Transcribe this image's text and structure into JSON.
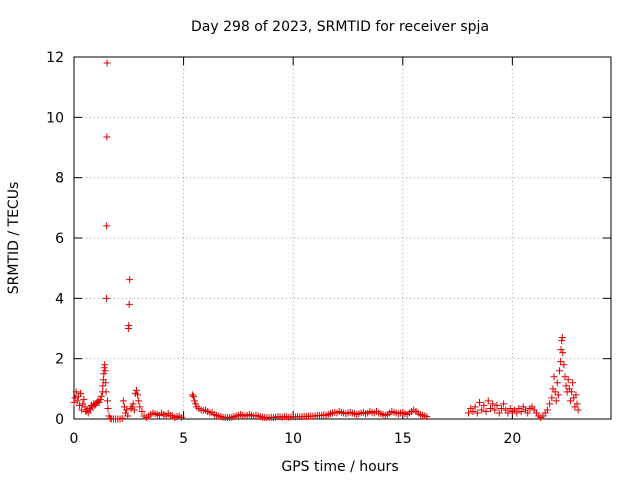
{
  "chart_data": {
    "type": "scatter",
    "title": "Day 298 of 2023, SRMTID for receiver spja",
    "xlabel": "GPS time / hours",
    "ylabel": "SRMTID / TECUs",
    "xlim": [
      0,
      24.5
    ],
    "ylim": [
      0,
      12
    ],
    "xticks": [
      0,
      5,
      10,
      15,
      20
    ],
    "yticks": [
      0,
      2,
      4,
      6,
      8,
      10,
      12
    ],
    "grid": true,
    "marker": "+",
    "series_color": "#e00000",
    "series": [
      {
        "name": "SRMTID",
        "points": [
          [
            0.0,
            0.55
          ],
          [
            0.05,
            0.7
          ],
          [
            0.1,
            0.9
          ],
          [
            0.15,
            0.6
          ],
          [
            0.2,
            0.75
          ],
          [
            0.25,
            0.45
          ],
          [
            0.3,
            0.85
          ],
          [
            0.35,
            0.3
          ],
          [
            0.4,
            0.5
          ],
          [
            0.45,
            0.65
          ],
          [
            0.5,
            0.4
          ],
          [
            0.55,
            0.25
          ],
          [
            0.6,
            0.3
          ],
          [
            0.65,
            0.2
          ],
          [
            0.7,
            0.35
          ],
          [
            0.75,
            0.3
          ],
          [
            0.8,
            0.45
          ],
          [
            0.85,
            0.4
          ],
          [
            0.9,
            0.5
          ],
          [
            0.95,
            0.45
          ],
          [
            1.0,
            0.5
          ],
          [
            1.05,
            0.55
          ],
          [
            1.1,
            0.6
          ],
          [
            1.15,
            0.55
          ],
          [
            1.2,
            0.65
          ],
          [
            1.25,
            0.75
          ],
          [
            1.3,
            0.9
          ],
          [
            1.32,
            1.1
          ],
          [
            1.34,
            1.3
          ],
          [
            1.36,
            1.5
          ],
          [
            1.38,
            1.7
          ],
          [
            1.4,
            1.8
          ],
          [
            1.42,
            1.6
          ],
          [
            1.44,
            1.2
          ],
          [
            1.46,
            0.9
          ],
          [
            1.48,
            4.0
          ],
          [
            1.49,
            6.4
          ],
          [
            1.5,
            9.35
          ],
          [
            1.51,
            11.8
          ],
          [
            1.53,
            0.6
          ],
          [
            1.55,
            0.35
          ],
          [
            1.6,
            0.1
          ],
          [
            1.65,
            0.02
          ],
          [
            1.7,
            0.0
          ],
          [
            1.8,
            0.0
          ],
          [
            1.9,
            0.0
          ],
          [
            2.0,
            0.0
          ],
          [
            2.1,
            0.0
          ],
          [
            2.2,
            0.02
          ],
          [
            2.25,
            0.6
          ],
          [
            2.3,
            0.4
          ],
          [
            2.35,
            0.2
          ],
          [
            2.4,
            0.3
          ],
          [
            2.45,
            0.1
          ],
          [
            2.48,
            3.0
          ],
          [
            2.5,
            3.1
          ],
          [
            2.52,
            3.8
          ],
          [
            2.54,
            4.62
          ],
          [
            2.6,
            0.35
          ],
          [
            2.65,
            0.4
          ],
          [
            2.7,
            0.5
          ],
          [
            2.75,
            0.3
          ],
          [
            2.8,
            0.85
          ],
          [
            2.85,
            0.95
          ],
          [
            2.9,
            0.8
          ],
          [
            2.95,
            0.6
          ],
          [
            3.0,
            0.4
          ],
          [
            3.1,
            0.25
          ],
          [
            3.2,
            0.1
          ],
          [
            3.3,
            0.05
          ],
          [
            3.4,
            0.1
          ],
          [
            3.5,
            0.15
          ],
          [
            3.6,
            0.2
          ],
          [
            3.7,
            0.18
          ],
          [
            3.8,
            0.15
          ],
          [
            3.9,
            0.12
          ],
          [
            4.0,
            0.2
          ],
          [
            4.1,
            0.15
          ],
          [
            4.2,
            0.1
          ],
          [
            4.3,
            0.18
          ],
          [
            4.4,
            0.12
          ],
          [
            4.5,
            0.1
          ],
          [
            4.6,
            0.05
          ],
          [
            4.7,
            0.08
          ],
          [
            4.8,
            0.1
          ],
          [
            4.9,
            0.05
          ],
          [
            5.4,
            0.8
          ],
          [
            5.45,
            0.75
          ],
          [
            5.5,
            0.6
          ],
          [
            5.55,
            0.5
          ],
          [
            5.6,
            0.4
          ],
          [
            5.7,
            0.35
          ],
          [
            5.8,
            0.3
          ],
          [
            5.9,
            0.28
          ],
          [
            6.0,
            0.3
          ],
          [
            6.1,
            0.25
          ],
          [
            6.2,
            0.2
          ],
          [
            6.3,
            0.22
          ],
          [
            6.4,
            0.15
          ],
          [
            6.5,
            0.12
          ],
          [
            6.6,
            0.1
          ],
          [
            6.7,
            0.08
          ],
          [
            6.8,
            0.06
          ],
          [
            6.9,
            0.05
          ],
          [
            7.0,
            0.04
          ],
          [
            7.1,
            0.05
          ],
          [
            7.2,
            0.06
          ],
          [
            7.3,
            0.08
          ],
          [
            7.4,
            0.1
          ],
          [
            7.5,
            0.12
          ],
          [
            7.6,
            0.15
          ],
          [
            7.7,
            0.12
          ],
          [
            7.8,
            0.1
          ],
          [
            7.9,
            0.12
          ],
          [
            8.0,
            0.15
          ],
          [
            8.1,
            0.12
          ],
          [
            8.2,
            0.1
          ],
          [
            8.3,
            0.12
          ],
          [
            8.4,
            0.1
          ],
          [
            8.5,
            0.08
          ],
          [
            8.6,
            0.06
          ],
          [
            8.7,
            0.05
          ],
          [
            8.8,
            0.04
          ],
          [
            8.9,
            0.05
          ],
          [
            9.0,
            0.06
          ],
          [
            9.1,
            0.05
          ],
          [
            9.2,
            0.06
          ],
          [
            9.3,
            0.08
          ],
          [
            9.4,
            0.07
          ],
          [
            9.5,
            0.06
          ],
          [
            9.6,
            0.08
          ],
          [
            9.7,
            0.07
          ],
          [
            9.8,
            0.06
          ],
          [
            9.9,
            0.07
          ],
          [
            10.0,
            0.08
          ],
          [
            10.1,
            0.07
          ],
          [
            10.2,
            0.08
          ],
          [
            10.3,
            0.07
          ],
          [
            10.4,
            0.08
          ],
          [
            10.5,
            0.09
          ],
          [
            10.6,
            0.08
          ],
          [
            10.7,
            0.09
          ],
          [
            10.8,
            0.1
          ],
          [
            10.9,
            0.09
          ],
          [
            11.0,
            0.1
          ],
          [
            11.1,
            0.12
          ],
          [
            11.2,
            0.11
          ],
          [
            11.3,
            0.12
          ],
          [
            11.4,
            0.14
          ],
          [
            11.5,
            0.12
          ],
          [
            11.6,
            0.15
          ],
          [
            11.7,
            0.18
          ],
          [
            11.8,
            0.2
          ],
          [
            11.9,
            0.22
          ],
          [
            12.0,
            0.2
          ],
          [
            12.1,
            0.25
          ],
          [
            12.2,
            0.22
          ],
          [
            12.3,
            0.2
          ],
          [
            12.4,
            0.18
          ],
          [
            12.5,
            0.2
          ],
          [
            12.6,
            0.22
          ],
          [
            12.7,
            0.2
          ],
          [
            12.8,
            0.18
          ],
          [
            12.9,
            0.15
          ],
          [
            13.0,
            0.18
          ],
          [
            13.1,
            0.2
          ],
          [
            13.2,
            0.22
          ],
          [
            13.3,
            0.18
          ],
          [
            13.4,
            0.2
          ],
          [
            13.5,
            0.25
          ],
          [
            13.6,
            0.22
          ],
          [
            13.7,
            0.2
          ],
          [
            13.8,
            0.25
          ],
          [
            13.9,
            0.2
          ],
          [
            14.0,
            0.18
          ],
          [
            14.1,
            0.15
          ],
          [
            14.2,
            0.12
          ],
          [
            14.3,
            0.15
          ],
          [
            14.4,
            0.2
          ],
          [
            14.5,
            0.25
          ],
          [
            14.6,
            0.22
          ],
          [
            14.7,
            0.2
          ],
          [
            14.8,
            0.18
          ],
          [
            14.9,
            0.2
          ],
          [
            15.0,
            0.22
          ],
          [
            15.1,
            0.18
          ],
          [
            15.2,
            0.15
          ],
          [
            15.3,
            0.2
          ],
          [
            15.4,
            0.25
          ],
          [
            15.5,
            0.3
          ],
          [
            15.6,
            0.25
          ],
          [
            15.7,
            0.2
          ],
          [
            15.8,
            0.15
          ],
          [
            15.9,
            0.12
          ],
          [
            16.0,
            0.1
          ],
          [
            16.1,
            0.08
          ],
          [
            18.0,
            0.2
          ],
          [
            18.1,
            0.35
          ],
          [
            18.2,
            0.25
          ],
          [
            18.3,
            0.4
          ],
          [
            18.4,
            0.2
          ],
          [
            18.5,
            0.55
          ],
          [
            18.6,
            0.3
          ],
          [
            18.7,
            0.45
          ],
          [
            18.8,
            0.25
          ],
          [
            18.9,
            0.6
          ],
          [
            19.0,
            0.35
          ],
          [
            19.1,
            0.5
          ],
          [
            19.2,
            0.3
          ],
          [
            19.3,
            0.45
          ],
          [
            19.4,
            0.2
          ],
          [
            19.5,
            0.35
          ],
          [
            19.6,
            0.5
          ],
          [
            19.7,
            0.3
          ],
          [
            19.8,
            0.2
          ],
          [
            19.9,
            0.35
          ],
          [
            20.0,
            0.25
          ],
          [
            20.1,
            0.3
          ],
          [
            20.2,
            0.2
          ],
          [
            20.3,
            0.35
          ],
          [
            20.4,
            0.25
          ],
          [
            20.5,
            0.4
          ],
          [
            20.6,
            0.3
          ],
          [
            20.7,
            0.2
          ],
          [
            20.8,
            0.35
          ],
          [
            20.9,
            0.4
          ],
          [
            21.0,
            0.3
          ],
          [
            21.1,
            0.2
          ],
          [
            21.2,
            0.1
          ],
          [
            21.3,
            0.05
          ],
          [
            21.4,
            0.1
          ],
          [
            21.5,
            0.2
          ],
          [
            21.6,
            0.3
          ],
          [
            21.7,
            0.5
          ],
          [
            21.8,
            0.7
          ],
          [
            21.85,
            1.0
          ],
          [
            21.9,
            1.4
          ],
          [
            21.95,
            0.9
          ],
          [
            22.0,
            0.6
          ],
          [
            22.05,
            1.2
          ],
          [
            22.1,
            0.8
          ],
          [
            22.15,
            1.6
          ],
          [
            22.2,
            1.9
          ],
          [
            22.22,
            2.3
          ],
          [
            22.25,
            2.6
          ],
          [
            22.28,
            2.7
          ],
          [
            22.3,
            2.2
          ],
          [
            22.35,
            1.8
          ],
          [
            22.4,
            1.4
          ],
          [
            22.45,
            1.1
          ],
          [
            22.5,
            0.9
          ],
          [
            22.55,
            1.3
          ],
          [
            22.6,
            1.0
          ],
          [
            22.65,
            0.6
          ],
          [
            22.7,
            0.9
          ],
          [
            22.75,
            1.2
          ],
          [
            22.8,
            0.7
          ],
          [
            22.85,
            0.4
          ],
          [
            22.9,
            0.8
          ],
          [
            22.95,
            0.5
          ],
          [
            23.0,
            0.3
          ]
        ]
      }
    ]
  }
}
